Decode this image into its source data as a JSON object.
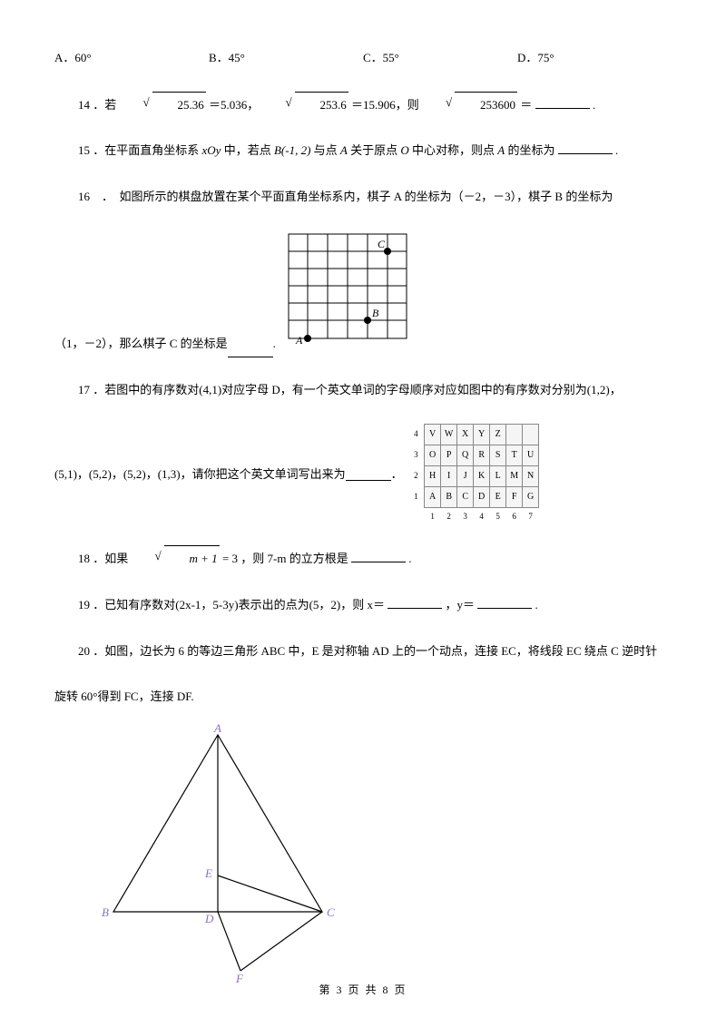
{
  "options": {
    "a": "A．60°",
    "b": "B．45°",
    "c": "C．55°",
    "d": "D．75°"
  },
  "q14": {
    "num": "14 ．若",
    "r1": "25.36",
    "eq1": "＝5.036，",
    "r2": "253.6",
    "eq2": "＝15.906，则",
    "r3": "253600",
    "eq3": "＝",
    "tail": "."
  },
  "q15": {
    "pre": "15 ．在平面直角坐标系",
    "xoy": "xOy",
    "mid1": "中，若点",
    "pt": "B(-1, 2)",
    "mid2": "与点",
    "A1": "A",
    "mid3": "关于原点",
    "O": "O",
    "mid4": "中心对称，则点",
    "A2": "A",
    "mid5": "的坐标为",
    "tail": "."
  },
  "q16": {
    "line1": "16　．　如图所示的棋盘放置在某个平面直角坐标系内，棋子 A 的坐标为（－2，－3），棋子 B 的坐标为",
    "line2a": "（1，－2），那么棋子 C 的坐标是",
    "line2b": "."
  },
  "q17": {
    "line1": "17 ．若图中的有序数对(4,1)对应字母 D，有一个英文单词的字母顺序对应如图中的有序数对分别为(1,2)，",
    "line2": "(5,1)，(5,2)，(5,2)，(1,3)，请你把这个英文单词写出来为",
    "tail": "．"
  },
  "q18": {
    "pre": "18 ．如果",
    "rad": "m + 1",
    "eq": " = 3",
    "mid": "，则 7-m 的立方根是",
    "tail": "."
  },
  "q19": {
    "text": "19 ．已知有序数对(2x-1，5-3y)表示出的点为(5，2)，则 x＝",
    "mid": "，y＝",
    "tail": "."
  },
  "q20": {
    "line1": "20 ．如图，边长为 6 的等边三角形 ABC 中，E 是对称轴 AD 上的一个动点，连接 EC，将线段 EC 绕点 C 逆时针",
    "line2": "旋转 60°得到 FC，连接 DF."
  },
  "gridLabels": {
    "A": "A",
    "B": "B",
    "C": "C"
  },
  "letterGrid": {
    "rows": [
      [
        "4",
        "V",
        "W",
        "X",
        "Y",
        "Z",
        "",
        ""
      ],
      [
        "3",
        "O",
        "P",
        "Q",
        "R",
        "S",
        "T",
        "U"
      ],
      [
        "2",
        "H",
        "I",
        "J",
        "K",
        "L",
        "M",
        "N"
      ],
      [
        "1",
        "A",
        "B",
        "C",
        "D",
        "E",
        "F",
        "G"
      ]
    ],
    "cols": [
      "",
      "1",
      "2",
      "3",
      "4",
      "5",
      "6",
      "7"
    ]
  },
  "tri": {
    "A": "A",
    "B": "B",
    "C": "C",
    "D": "D",
    "E": "E",
    "F": "F"
  },
  "footer": "第 3 页 共 8 页"
}
